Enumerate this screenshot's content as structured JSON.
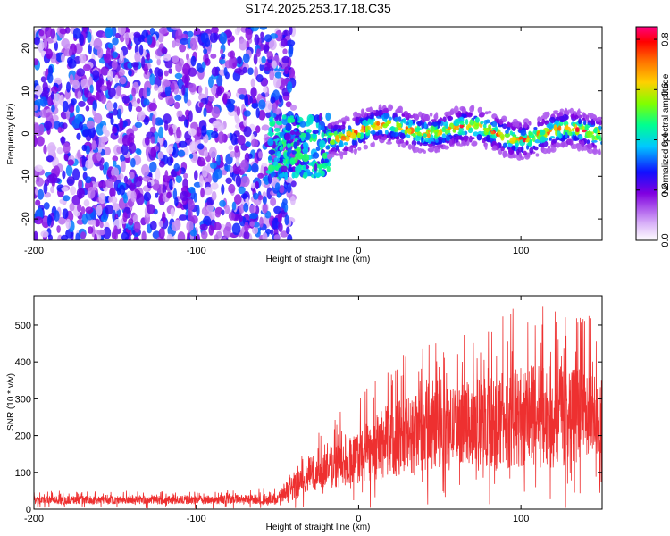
{
  "chart_data": [
    {
      "type": "heatmap",
      "title": "S174.2025.253.17.18.C35",
      "xlabel": "Height of straight line (km)",
      "ylabel": "Frequency (Hz)",
      "xlim": [
        -200,
        150
      ],
      "ylim": [
        -25,
        25
      ],
      "xticks": [
        -200,
        -100,
        0,
        100
      ],
      "xtick_labels": [
        "-200",
        "-100",
        "0",
        "100"
      ],
      "yticks": [
        -20,
        -10,
        0,
        10,
        20
      ],
      "ytick_labels": [
        "-20",
        "-10",
        "0",
        "10",
        "20"
      ],
      "noise_region": {
        "x": [
          -200,
          -48
        ],
        "amplitude_range": [
          0.1,
          0.3
        ]
      },
      "transition_region": {
        "x": [
          -55,
          -18
        ],
        "frequency_center": -3,
        "amplitude_range": [
          0.2,
          0.5
        ]
      },
      "signal_band": {
        "x": [
          -18,
          150
        ],
        "frequency_center": 0.5,
        "frequency_halfwidth": 2,
        "amplitude_range": [
          0.4,
          0.85
        ]
      },
      "colorbar": {
        "label": "Normalized spectral amplitude",
        "range": [
          0,
          0.85
        ],
        "ticks": [
          0.0,
          0.2,
          0.4,
          0.6,
          0.8
        ],
        "tick_labels": [
          "0.0",
          "0.2",
          "0.4",
          "0.6",
          "0.8"
        ],
        "colors": [
          "#e8d8f8",
          "#8000e0",
          "#0000ff",
          "#00d8ff",
          "#00ff80",
          "#80ff00",
          "#ffd000",
          "#ff8000",
          "#ff0000",
          "#ff0080"
        ]
      }
    },
    {
      "type": "line",
      "xlabel": "Height of straight line (km)",
      "ylabel": "SNR (10 * v/v)",
      "xlim": [
        -200,
        150
      ],
      "ylim": [
        0,
        580
      ],
      "xticks": [
        -200,
        -100,
        0,
        100
      ],
      "xtick_labels": [
        "-200",
        "-100",
        "0",
        "100"
      ],
      "yticks": [
        0,
        100,
        200,
        300,
        400,
        500
      ],
      "ytick_labels": [
        "0",
        "100",
        "200",
        "300",
        "400",
        "500"
      ],
      "series": [
        {
          "name": "SNR",
          "color": "#ee3030",
          "envelope": {
            "x": [
              -200,
              -100,
              -50,
              -40,
              -30,
              -20,
              0,
              20,
              40,
              60,
              80,
              100,
              120,
              140,
              150
            ],
            "mean": [
              25,
              25,
              28,
              60,
              90,
              110,
              140,
              190,
              210,
              230,
              240,
              250,
              250,
              260,
              260
            ],
            "peak": [
              50,
              50,
              60,
              150,
              170,
              240,
              300,
              420,
              450,
              460,
              520,
              560,
              560,
              540,
              500
            ]
          }
        }
      ]
    }
  ]
}
